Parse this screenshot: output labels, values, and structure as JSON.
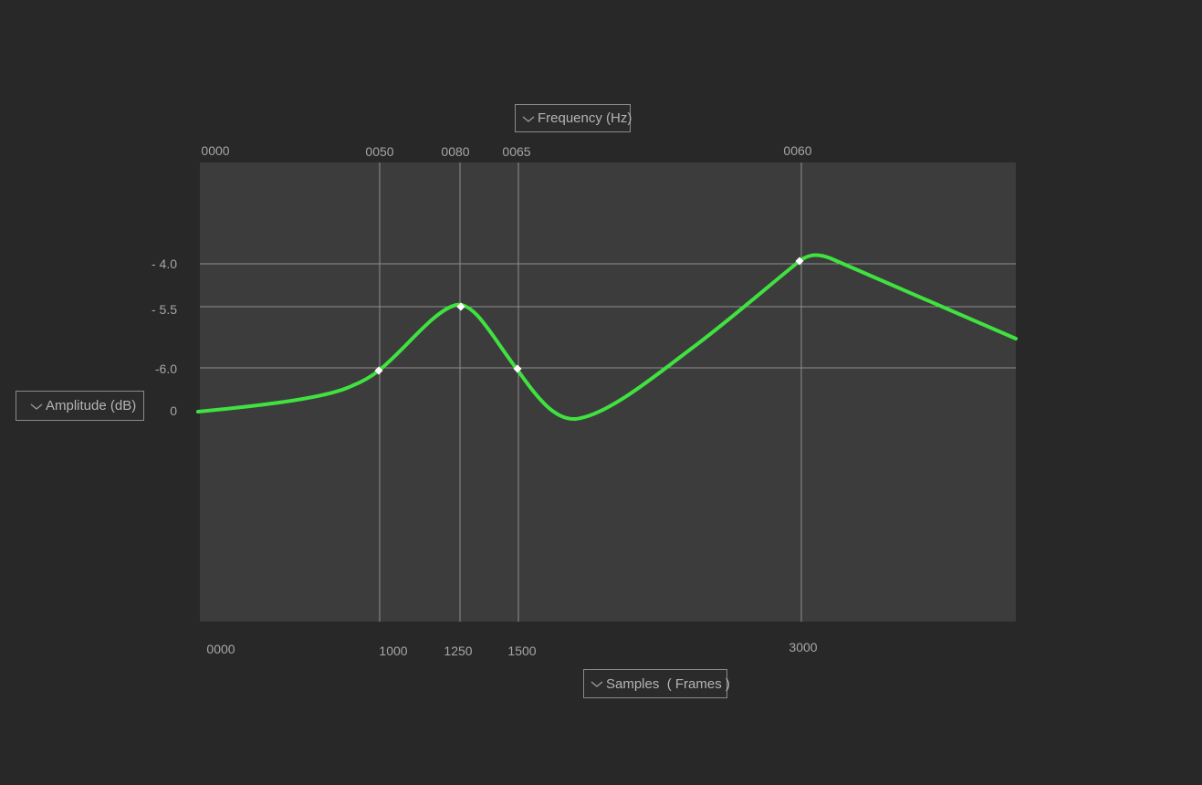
{
  "controls": {
    "frequency_label": "Frequency (Hz)",
    "amplitude_label": "Amplitude (dB)",
    "samples_label": "Samples  ( Frames )"
  },
  "chart_data": {
    "type": "line",
    "top_axis_ticks": [
      "0000",
      "0050",
      "0080",
      "0065",
      "0060"
    ],
    "bottom_axis_ticks": [
      "0000",
      "1000",
      "1250",
      "1500",
      "3000"
    ],
    "left_axis_ticks": [
      "- 4.0",
      "- 5.5",
      "-6.0",
      "0"
    ],
    "control_points": [
      {
        "x": 1000,
        "y": "-6.0"
      },
      {
        "x": 1250,
        "y": "- 5.5"
      },
      {
        "x": 1500,
        "y": "-6.0"
      },
      {
        "x": 3000,
        "y": "- 4.0"
      }
    ],
    "colors": {
      "curve": "#3fe23f",
      "plot_background": "#3c3c3c",
      "page_background": "#282828",
      "grid": "#8e8e8e",
      "point": "#ffffff"
    },
    "grid": true
  }
}
